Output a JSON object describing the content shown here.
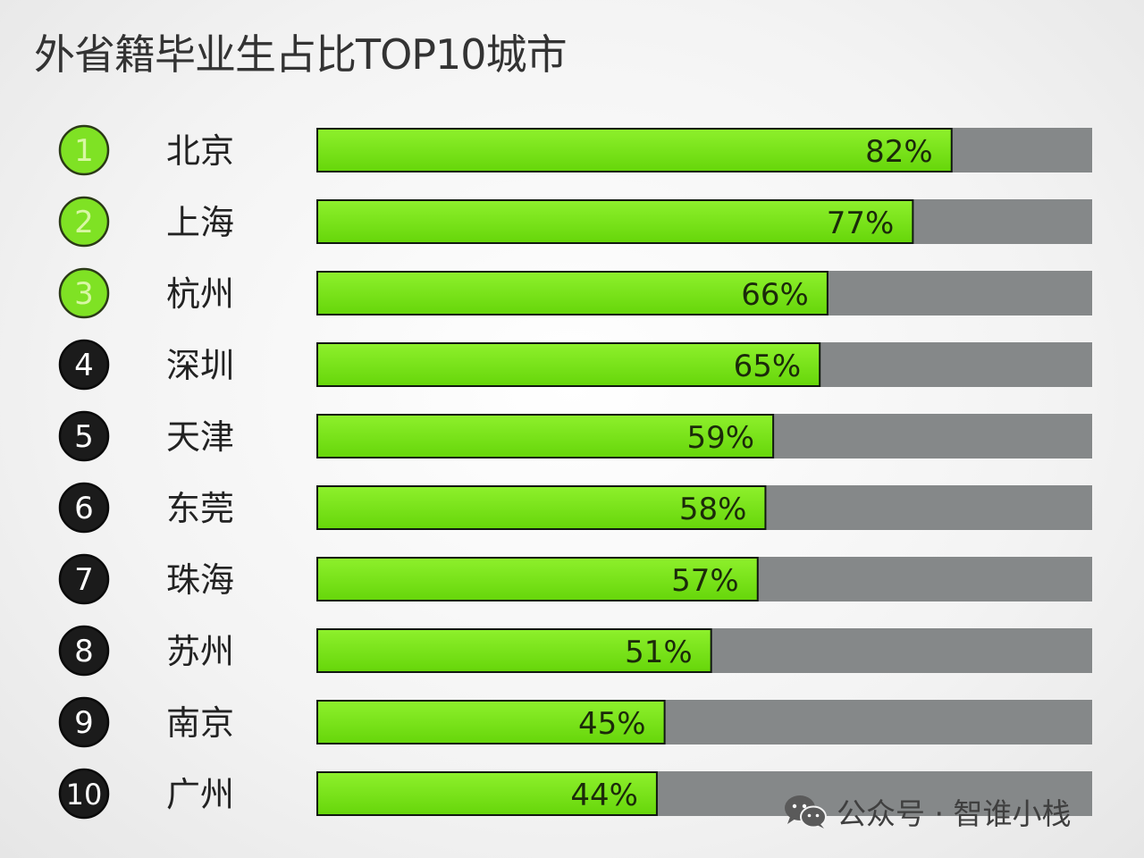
{
  "chart_data": {
    "type": "bar",
    "orientation": "horizontal",
    "title": "外省籍毕业生占比TOP10城市",
    "categories": [
      "北京",
      "上海",
      "杭州",
      "深圳",
      "天津",
      "东莞",
      "珠海",
      "苏州",
      "南京",
      "广州"
    ],
    "ranks": [
      "1",
      "2",
      "3",
      "4",
      "5",
      "6",
      "7",
      "8",
      "9",
      "10"
    ],
    "values": [
      82,
      77,
      66,
      65,
      59,
      58,
      57,
      51,
      45,
      44
    ],
    "value_labels": [
      "82%",
      "77%",
      "66%",
      "65%",
      "59%",
      "58%",
      "57%",
      "51%",
      "45%",
      "44%"
    ],
    "xlim": [
      0,
      100
    ],
    "unit": "%",
    "top_rank_count": 3,
    "colors": {
      "bar": "#6fdc10",
      "bar_light": "#8ef02c",
      "bar_border": "#101810",
      "track": "#858889",
      "rank_top": "#7fe224",
      "rank_top_text": "#d8f7a4",
      "rank_other": "#1b1b1b",
      "rank_other_text": "#ffffff",
      "label": "#222222",
      "title": "#333333"
    }
  },
  "watermark": {
    "icon": "wechat-icon",
    "text": "公众号 · 智谁小栈"
  }
}
